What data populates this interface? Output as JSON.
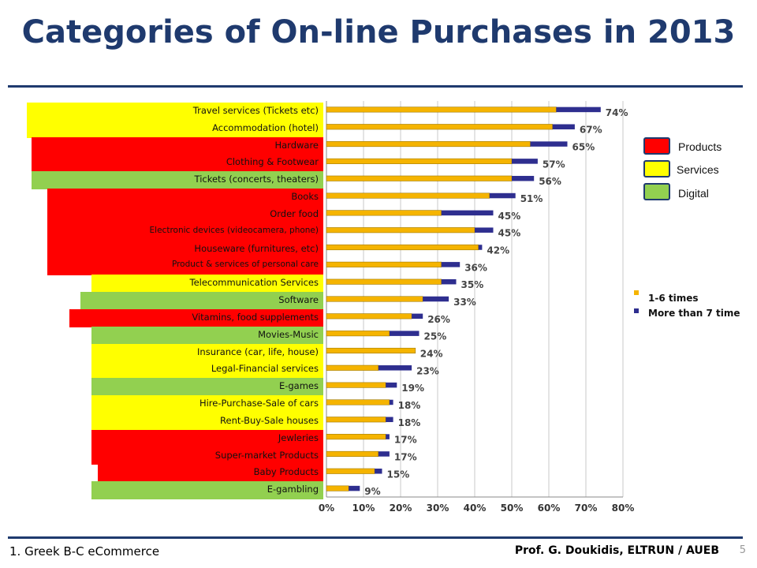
{
  "title": "Categories of On-line Purchases in 2013",
  "footer": {
    "left": "1.    Greek B-C eCommerce",
    "right": "Prof. G. Doukidis, ELTRUN / AUEB",
    "page_number": "5"
  },
  "category_legend": [
    {
      "label": "Products",
      "color": "#ff0000"
    },
    {
      "label": "Services",
      "color": "#ffff00"
    },
    {
      "label": "Digital",
      "color": "#92d050"
    }
  ],
  "colors": {
    "series1": "#f5b400",
    "series2": "#2e2e8f",
    "title": "#1f3a6e",
    "product": "#ff0000",
    "service": "#ffff00",
    "digital": "#92d050"
  },
  "chart_data": {
    "type": "bar",
    "orientation": "horizontal",
    "stacked": true,
    "categories": [
      "Travel services (Tickets etc)",
      "Accommodation (hotel)",
      "Hardware",
      "Clothing & Footwear",
      "Tickets (concerts, theaters)",
      "Books",
      "Order food",
      "Electronic devices (videocamera, phone)",
      "Houseware (furnitures, etc)",
      "Product & services of personal care",
      "Telecommunication Services",
      "Software",
      "Vitamins, food supplements",
      "Movies-Music",
      "Insurance (car, life, house)",
      "Legal-Financial services",
      "E-games",
      "Hire-Purchase-Sale of cars",
      "Rent-Buy-Sale houses",
      "Jewleries",
      "Super-market Products",
      "Baby Products",
      "E-gambling"
    ],
    "category_groups": [
      "service",
      "service",
      "product",
      "product",
      "digital",
      "product",
      "product",
      "product",
      "product",
      "product",
      "service",
      "digital",
      "product",
      "digital",
      "service",
      "service",
      "digital",
      "service",
      "service",
      "product",
      "product",
      "product",
      "digital"
    ],
    "series": [
      {
        "name": "1-6 times",
        "values": [
          62,
          61,
          55,
          50,
          50,
          44,
          31,
          40,
          41,
          31,
          31,
          26,
          23,
          17,
          24,
          14,
          16,
          17,
          16,
          16,
          14,
          13,
          6
        ]
      },
      {
        "name": "More than 7 time",
        "values": [
          12,
          6,
          10,
          7,
          6,
          7,
          14,
          5,
          1,
          5,
          4,
          7,
          3,
          8,
          0,
          9,
          3,
          1,
          2,
          1,
          3,
          2,
          3
        ]
      }
    ],
    "totals_labels": [
      "74%",
      "67%",
      "65%",
      "57%",
      "56%",
      "51%",
      "45%",
      "45%",
      "42%",
      "36%",
      "35%",
      "33%",
      "26%",
      "25%",
      "24%",
      "23%",
      "19%",
      "18%",
      "18%",
      "17%",
      "17%",
      "15%",
      "9%"
    ],
    "x_ticks": [
      "0%",
      "10%",
      "20%",
      "30%",
      "40%",
      "50%",
      "60%",
      "70%",
      "80%"
    ],
    "xlim": [
      0,
      80
    ],
    "grid": true,
    "legend": "right"
  }
}
